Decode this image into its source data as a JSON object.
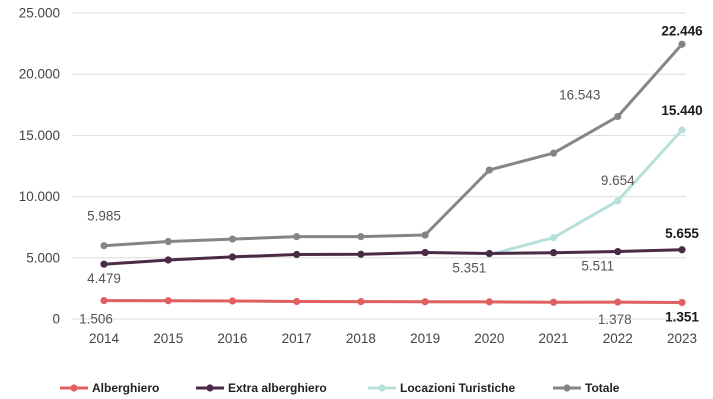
{
  "chart_data": {
    "type": "line",
    "x": [
      2014,
      2015,
      2016,
      2017,
      2018,
      2019,
      2020,
      2021,
      2022,
      2023
    ],
    "ylim": [
      0,
      25000
    ],
    "yticks": [
      "0",
      "5.000",
      "10.000",
      "15.000",
      "20.000",
      "25.000"
    ],
    "grid": "horizontal",
    "legend_position": "bottom",
    "series": [
      {
        "name": "Alberghiero",
        "color": "#e06060",
        "values": [
          1506,
          1490,
          1470,
          1430,
          1420,
          1410,
          1400,
          1370,
          1378,
          1351
        ],
        "labels": [
          {
            "index": 0,
            "text": "1.506",
            "bold": false
          },
          {
            "index": 8,
            "text": "1.378",
            "bold": false
          },
          {
            "index": 9,
            "text": "1.351",
            "bold": true
          }
        ]
      },
      {
        "name": "Extra alberghiero",
        "color": "#4a2a45",
        "values": [
          4479,
          4820,
          5070,
          5270,
          5290,
          5430,
          5351,
          5420,
          5511,
          5655
        ],
        "labels": [
          {
            "index": 0,
            "text": "4.479",
            "bold": false
          },
          {
            "index": 6,
            "text": "5.351",
            "bold": false
          },
          {
            "index": 8,
            "text": "5.511",
            "bold": false
          },
          {
            "index": 9,
            "text": "5.655",
            "bold": true
          }
        ]
      },
      {
        "name": "Locazioni Turistiche",
        "color": "#b8e0da",
        "values": [
          null,
          null,
          null,
          null,
          null,
          null,
          5250,
          6650,
          9654,
          15440
        ],
        "labels": [
          {
            "index": 8,
            "text": "9.654",
            "bold": false
          },
          {
            "index": 9,
            "text": "15.440",
            "bold": true
          }
        ]
      },
      {
        "name": "Totale",
        "color": "#858585",
        "values": [
          5985,
          6330,
          6530,
          6730,
          6730,
          6860,
          12170,
          13550,
          16543,
          22446
        ],
        "labels": [
          {
            "index": 0,
            "text": "5.985",
            "bold": false
          },
          {
            "index": 8,
            "text": "16.543",
            "bold": false
          },
          {
            "index": 9,
            "text": "22.446",
            "bold": true
          }
        ]
      }
    ]
  }
}
